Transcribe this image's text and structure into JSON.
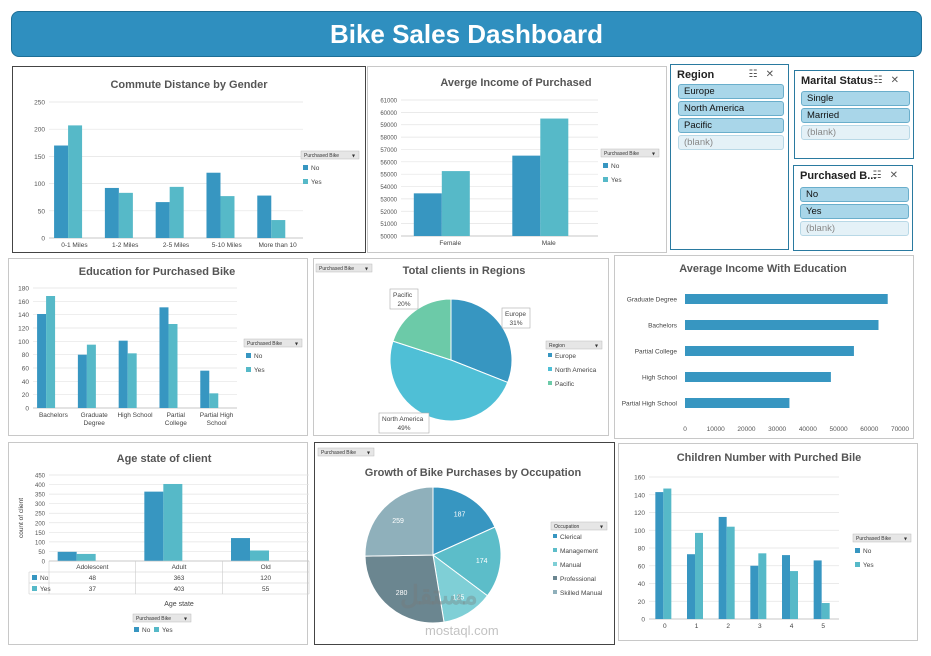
{
  "header": {
    "title": "Bike Sales Dashboard"
  },
  "colors": {
    "no": "#3796c1",
    "yes": "#56b9c8",
    "banner": "#2f8fbf",
    "north_america": "#4fbfd6",
    "pacific": "#6ccaa8",
    "europe": "#3796c1"
  },
  "legend_common": {
    "purchased_title": "Purchased Bike",
    "no": "No",
    "yes": "Yes"
  },
  "slicers": {
    "region": {
      "title": "Region",
      "items": [
        "Europe",
        "North America",
        "Pacific",
        "(blank)"
      ]
    },
    "marital": {
      "title": "Marital Status",
      "items": [
        "Single",
        "Married",
        "(blank)"
      ]
    },
    "purchased": {
      "title": "Purchased B...",
      "items": [
        "No",
        "Yes",
        "(blank)"
      ]
    }
  },
  "chart_data": [
    {
      "id": "commute",
      "type": "bar",
      "title": "Commute Distance by Gender",
      "categories": [
        "0-1 Miles",
        "1-2 Miles",
        "2-5 Miles",
        "5-10 Miles",
        "More than 10"
      ],
      "series": [
        {
          "name": "No",
          "values": [
            170,
            92,
            66,
            120,
            78
          ]
        },
        {
          "name": "Yes",
          "values": [
            207,
            83,
            94,
            77,
            33
          ]
        }
      ],
      "ylim": [
        0,
        250
      ],
      "yticks": [
        0,
        50,
        100,
        150,
        200,
        250
      ],
      "legend_title": "Purchased Bike",
      "grid": true
    },
    {
      "id": "income",
      "type": "bar",
      "title": "Averge Income of Purchased",
      "categories": [
        "Female",
        "Male"
      ],
      "series": [
        {
          "name": "No",
          "values": [
            53450,
            56500
          ]
        },
        {
          "name": "Yes",
          "values": [
            55250,
            59500
          ]
        }
      ],
      "ylim": [
        50000,
        61000
      ],
      "yticks": [
        50000,
        51000,
        52000,
        53000,
        54000,
        55000,
        56000,
        57000,
        58000,
        59000,
        60000,
        61000
      ],
      "legend_title": "Purchased Bike",
      "grid": true
    },
    {
      "id": "education",
      "type": "bar",
      "title": "Education for Purchased Bike",
      "categories": [
        "Bachelors",
        "Graduate Degree",
        "High School",
        "Partial College",
        "Partial High School"
      ],
      "category_lines": [
        [
          "Bachelors"
        ],
        [
          "Graduate",
          "Degree"
        ],
        [
          "High School"
        ],
        [
          "Partial",
          "College"
        ],
        [
          "Partial High",
          "School"
        ]
      ],
      "series": [
        {
          "name": "No",
          "values": [
            141,
            80,
            101,
            151,
            56
          ]
        },
        {
          "name": "Yes",
          "values": [
            168,
            95,
            82,
            126,
            22
          ]
        }
      ],
      "ylim": [
        0,
        180
      ],
      "yticks": [
        0,
        20,
        40,
        60,
        80,
        100,
        120,
        140,
        160,
        180
      ],
      "legend_title": "Purchased Bike",
      "grid": true
    },
    {
      "id": "regions",
      "type": "pie",
      "title": "Total clients in Regions",
      "filter_label": "Purchased Bike",
      "legend_title": "Region",
      "slices": [
        {
          "name": "Europe",
          "value": 31,
          "label": "Europe",
          "pct": "31%"
        },
        {
          "name": "North America",
          "value": 49,
          "label": "North America",
          "pct": "49%"
        },
        {
          "name": "Pacific",
          "value": 20,
          "label": "Pacific",
          "pct": "20%"
        }
      ]
    },
    {
      "id": "income_edu",
      "type": "bar",
      "orientation": "horizontal",
      "title": "Average Income With Education",
      "categories": [
        "Graduate Degree",
        "Bachelors",
        "Partial College",
        "High School",
        "Partial High School"
      ],
      "values": [
        66000,
        63000,
        55000,
        47500,
        34000
      ],
      "xlim": [
        0,
        70000
      ],
      "xticks": [
        0,
        10000,
        20000,
        30000,
        40000,
        50000,
        60000,
        70000
      ]
    },
    {
      "id": "age",
      "type": "bar",
      "title": "Age state of client",
      "categories": [
        "Adolescent",
        "Adult",
        "Old"
      ],
      "series": [
        {
          "name": "No",
          "values": [
            48,
            363,
            120
          ]
        },
        {
          "name": "Yes",
          "values": [
            37,
            403,
            55
          ]
        }
      ],
      "ylim": [
        0,
        450
      ],
      "yticks": [
        0,
        50,
        100,
        150,
        200,
        250,
        300,
        350,
        400,
        450
      ],
      "ylabel": "count of client",
      "xlabel": "Age state",
      "legend_title": "Purchased Bike",
      "data_table": true
    },
    {
      "id": "occupation",
      "type": "pie",
      "title": "Growth of Bike Purchases by Occupation",
      "filter_label": "Purchased Bike",
      "legend_title": "Occupation",
      "slices": [
        {
          "name": "Clerical",
          "value": 187,
          "label": "187"
        },
        {
          "name": "Management",
          "value": 174,
          "label": "174"
        },
        {
          "name": "Manual",
          "value": 125,
          "label": "125"
        },
        {
          "name": "Professional",
          "value": 280,
          "label": "280"
        },
        {
          "name": "Skilled Manual",
          "value": 259,
          "label": "259"
        }
      ]
    },
    {
      "id": "children",
      "type": "bar",
      "title": "Children Number with Purched Bile",
      "categories": [
        "0",
        "1",
        "2",
        "3",
        "4",
        "5"
      ],
      "series": [
        {
          "name": "No",
          "values": [
            143,
            73,
            115,
            60,
            72,
            66
          ]
        },
        {
          "name": "Yes",
          "values": [
            147,
            97,
            104,
            74,
            54,
            18
          ]
        }
      ],
      "ylim": [
        0,
        160
      ],
      "yticks": [
        0,
        20,
        40,
        60,
        80,
        100,
        120,
        140,
        160
      ],
      "legend_title": "Purchased Bike",
      "grid": true
    }
  ],
  "watermark": {
    "arabic": "مستقل",
    "latin": "mostaql.com"
  }
}
